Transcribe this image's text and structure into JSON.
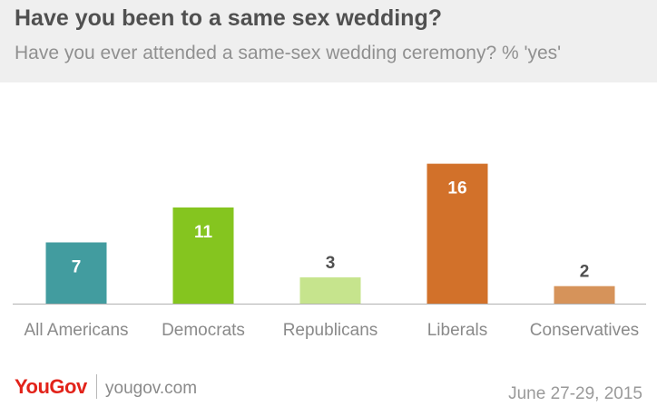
{
  "header": {
    "title": "Have you been to a same sex wedding?",
    "subtitle": "Have you ever attended a same-sex wedding ceremony? % 'yes'"
  },
  "chart_data": {
    "type": "bar",
    "categories": [
      "All Americans",
      "Democrats",
      "Republicans",
      "Liberals",
      "Conservatives"
    ],
    "values": [
      7,
      11,
      3,
      16,
      2
    ],
    "colors": [
      "#429c9f",
      "#85c51f",
      "#c6e48d",
      "#d2712a",
      "#d6935a"
    ],
    "value_label_colors": [
      "#ffffff",
      "#ffffff",
      "#ffffff",
      "#ffffff",
      "#505050"
    ],
    "ylim": [
      0,
      17
    ],
    "grid": false,
    "legend": "none"
  },
  "footer": {
    "brand": "YouGov",
    "url": "yougov.com",
    "date": "June 27-29, 2015"
  }
}
